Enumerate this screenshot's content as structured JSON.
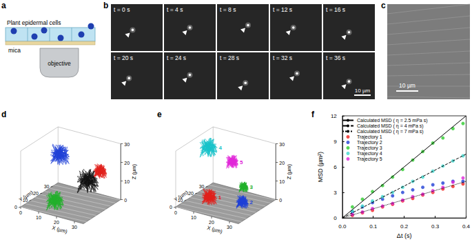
{
  "panels": {
    "a": {
      "label": "a",
      "cells": "Plant epidermal cells",
      "substrate": "mica",
      "lens": "objective"
    },
    "b": {
      "label": "b",
      "frames": [
        "t = 0 s",
        "t = 4 s",
        "t = 8 s",
        "t = 12 s",
        "t = 16 s",
        "t = 20 s",
        "t = 24 s",
        "t = 28 s",
        "t = 32 s",
        "t = 36 s"
      ],
      "scale_bar": "10 µm"
    },
    "c": {
      "label": "c",
      "scale_bar": "10 µm"
    },
    "d": {
      "label": "d",
      "x_label": "X (µm)",
      "y_label": "Y (µm)",
      "z_label": "Z (µm)",
      "x_ticks": [
        0,
        10,
        20,
        30
      ],
      "y_ticks": [
        0,
        10,
        20,
        30
      ],
      "z_ticks": [
        0,
        10,
        20,
        30
      ],
      "trajectory_colors": [
        "#1f3fd6",
        "#e0201b",
        "#111111",
        "#22b02a"
      ]
    },
    "e": {
      "label": "e",
      "x_label": "X (µm)",
      "y_label": "Y (µm)",
      "z_label": "Z (µm)",
      "x_ticks": [
        0,
        10,
        20,
        30
      ],
      "y_ticks": [
        0,
        10,
        20,
        30
      ],
      "z_ticks": [
        0,
        10,
        20,
        30
      ],
      "trajectories": [
        {
          "label": "1",
          "color": "#e0201b"
        },
        {
          "label": "2",
          "color": "#1f3fd6"
        },
        {
          "label": "3",
          "color": "#22b02a"
        },
        {
          "label": "4",
          "color": "#17c3c9"
        },
        {
          "label": "5",
          "color": "#e026d8"
        }
      ]
    },
    "f": {
      "label": "f"
    }
  },
  "chart_data": {
    "type": "scatter",
    "x_label": "Δt (s)",
    "y_label": "MSD (µm²)",
    "xlim": [
      0,
      0.4
    ],
    "xticks": [
      {
        "value": 0,
        "label": "0.0"
      },
      0.1,
      0.2,
      0.3,
      0.4
    ],
    "ylim": [
      0,
      12
    ],
    "yticks": [
      0,
      3,
      6,
      9,
      12
    ],
    "grid": false,
    "legend": "upper left",
    "series": [
      {
        "name": "Calculated MSD ( η = 2.5 mPa s)",
        "type": "line",
        "line_style": "solid",
        "color": "#000000",
        "x": [
          0,
          0.4
        ],
        "values": [
          0,
          12
        ]
      },
      {
        "name": "Calculated MSD ( η = 4 mPa s)",
        "type": "line",
        "line_style": "dashed",
        "color": "#000000",
        "x": [
          0,
          0.4
        ],
        "values": [
          0,
          7.5
        ]
      },
      {
        "name": "Calculated MSD ( η = 7 mPa s)",
        "type": "line",
        "line_style": "dotted",
        "color": "#000000",
        "x": [
          0,
          0.4
        ],
        "values": [
          0,
          4.3
        ]
      },
      {
        "name": "Trajectory 1",
        "type": "scatter",
        "marker": "circle",
        "color": "#f0201b",
        "x": [
          0.0325,
          0.065,
          0.0975,
          0.13,
          0.1625,
          0.195,
          0.2275,
          0.26,
          0.2925,
          0.325,
          0.3575,
          0.39
        ],
        "values": [
          0.3,
          0.6,
          0.9,
          1.3,
          1.6,
          2.0,
          2.3,
          2.7,
          3.0,
          3.4,
          3.7,
          4.0
        ]
      },
      {
        "name": "Trajectory 2",
        "type": "scatter",
        "marker": "circle",
        "color": "#1f3fd6",
        "x": [
          0.0325,
          0.065,
          0.0975,
          0.13,
          0.1625,
          0.195,
          0.2275,
          0.26,
          0.2925,
          0.325,
          0.3575,
          0.39
        ],
        "values": [
          0.7,
          1.3,
          1.8,
          2.2,
          2.6,
          3.0,
          3.3,
          3.6,
          3.9,
          4.1,
          4.3,
          4.3
        ]
      },
      {
        "name": "Trajectory 3",
        "type": "scatter",
        "marker": "circle",
        "color": "#2ecc2e",
        "x": [
          0.0325,
          0.065,
          0.0975,
          0.13,
          0.1625,
          0.195,
          0.2275,
          0.26,
          0.2925,
          0.325,
          0.3575,
          0.39
        ],
        "values": [
          1.3,
          2.2,
          3.1,
          3.8,
          4.8,
          5.7,
          6.8,
          7.8,
          8.8,
          9.4,
          10.5,
          11.1
        ]
      },
      {
        "name": "Trajectory 4",
        "type": "scatter",
        "marker": "circle",
        "color": "#3fd9d0",
        "x": [
          0.0325,
          0.065,
          0.0975,
          0.13,
          0.1625,
          0.195,
          0.2275,
          0.26,
          0.2925,
          0.325,
          0.3575,
          0.39
        ],
        "values": [
          0.8,
          1.4,
          2.0,
          2.5,
          3.0,
          3.6,
          4.3,
          4.8,
          5.5,
          6.1,
          6.7,
          7.3
        ]
      },
      {
        "name": "Trajectory 5",
        "type": "scatter",
        "marker": "circle",
        "color": "#e026d8",
        "x": [
          0.0325,
          0.065,
          0.0975,
          0.13,
          0.1625,
          0.195,
          0.2275,
          0.26,
          0.2925,
          0.325,
          0.3575,
          0.39
        ],
        "values": [
          0.4,
          0.7,
          1.1,
          1.4,
          1.7,
          2.1,
          2.5,
          2.8,
          3.2,
          3.6,
          4.2,
          4.7
        ]
      }
    ]
  }
}
